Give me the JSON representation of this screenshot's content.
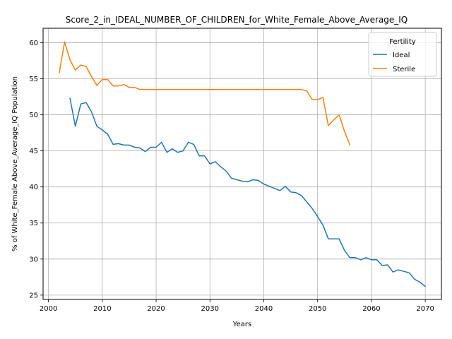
{
  "chart_data": {
    "type": "line",
    "title": "Score_2_in_IDEAL_NUMBER_OF_CHILDREN_for_White_Female_Above_Average_IQ",
    "xlabel": "Years",
    "ylabel": "% of White_Female Above_Average_IQ Population",
    "xlim": [
      1999,
      2073
    ],
    "ylim": [
      24.4,
      62.0
    ],
    "xticks": [
      2000,
      2010,
      2020,
      2030,
      2040,
      2050,
      2060,
      2070
    ],
    "yticks": [
      25,
      30,
      35,
      40,
      45,
      50,
      55,
      60
    ],
    "grid": true,
    "legend": {
      "title": "Fertility",
      "placement": "top-right"
    },
    "series": [
      {
        "name": "Ideal",
        "color": "#1f77b4",
        "x": [
          2004,
          2005,
          2006,
          2007,
          2008,
          2009,
          2010,
          2011,
          2012,
          2013,
          2014,
          2015,
          2016,
          2017,
          2018,
          2019,
          2020,
          2021,
          2022,
          2023,
          2024,
          2025,
          2026,
          2027,
          2028,
          2029,
          2030,
          2031,
          2032,
          2033,
          2034,
          2035,
          2036,
          2037,
          2038,
          2039,
          2040,
          2041,
          2042,
          2043,
          2044,
          2045,
          2046,
          2047,
          2048,
          2049,
          2050,
          2051,
          2052,
          2053,
          2054,
          2055,
          2056,
          2057,
          2058,
          2059,
          2060,
          2061,
          2062,
          2063,
          2064,
          2065,
          2066,
          2067,
          2068,
          2069,
          2070
        ],
        "y": [
          52.3,
          48.4,
          51.5,
          51.7,
          50.4,
          48.4,
          47.9,
          47.3,
          45.9,
          46.0,
          45.8,
          45.8,
          45.5,
          45.4,
          44.9,
          45.5,
          45.5,
          46.2,
          44.8,
          45.3,
          44.8,
          45.0,
          46.2,
          45.9,
          44.3,
          44.3,
          43.2,
          43.5,
          42.8,
          42.2,
          41.2,
          41.0,
          40.8,
          40.7,
          41.0,
          40.9,
          40.4,
          40.1,
          39.8,
          39.5,
          40.1,
          39.3,
          39.2,
          38.8,
          37.9,
          37.0,
          35.9,
          34.7,
          32.8,
          32.8,
          32.8,
          31.2,
          30.2,
          30.2,
          29.9,
          30.2,
          29.9,
          29.9,
          29.1,
          29.2,
          28.2,
          28.5,
          28.3,
          28.1,
          27.2,
          26.8,
          26.2
        ]
      },
      {
        "name": "Sterile",
        "color": "#ff7f0e",
        "x": [
          2002,
          2003,
          2004,
          2005,
          2006,
          2007,
          2008,
          2009,
          2010,
          2011,
          2012,
          2013,
          2014,
          2015,
          2016,
          2017,
          2018,
          2019,
          2020,
          2021,
          2022,
          2023,
          2024,
          2025,
          2026,
          2027,
          2028,
          2029,
          2030,
          2031,
          2032,
          2033,
          2034,
          2035,
          2036,
          2037,
          2038,
          2039,
          2040,
          2041,
          2042,
          2043,
          2044,
          2045,
          2046,
          2047,
          2048,
          2049,
          2050,
          2051,
          2052,
          2053,
          2054,
          2055,
          2056
        ],
        "y": [
          55.8,
          60.1,
          57.6,
          56.2,
          56.9,
          56.7,
          55.3,
          54.1,
          54.9,
          54.9,
          54.0,
          54.0,
          54.2,
          53.8,
          53.8,
          53.5,
          53.5,
          53.5,
          53.5,
          53.5,
          53.5,
          53.5,
          53.5,
          53.5,
          53.5,
          53.5,
          53.5,
          53.5,
          53.5,
          53.5,
          53.5,
          53.5,
          53.5,
          53.5,
          53.5,
          53.5,
          53.5,
          53.5,
          53.5,
          53.5,
          53.5,
          53.5,
          53.5,
          53.5,
          53.5,
          53.5,
          53.3,
          52.1,
          52.1,
          52.4,
          48.5,
          49.3,
          50.0,
          47.7,
          45.8
        ]
      }
    ]
  }
}
